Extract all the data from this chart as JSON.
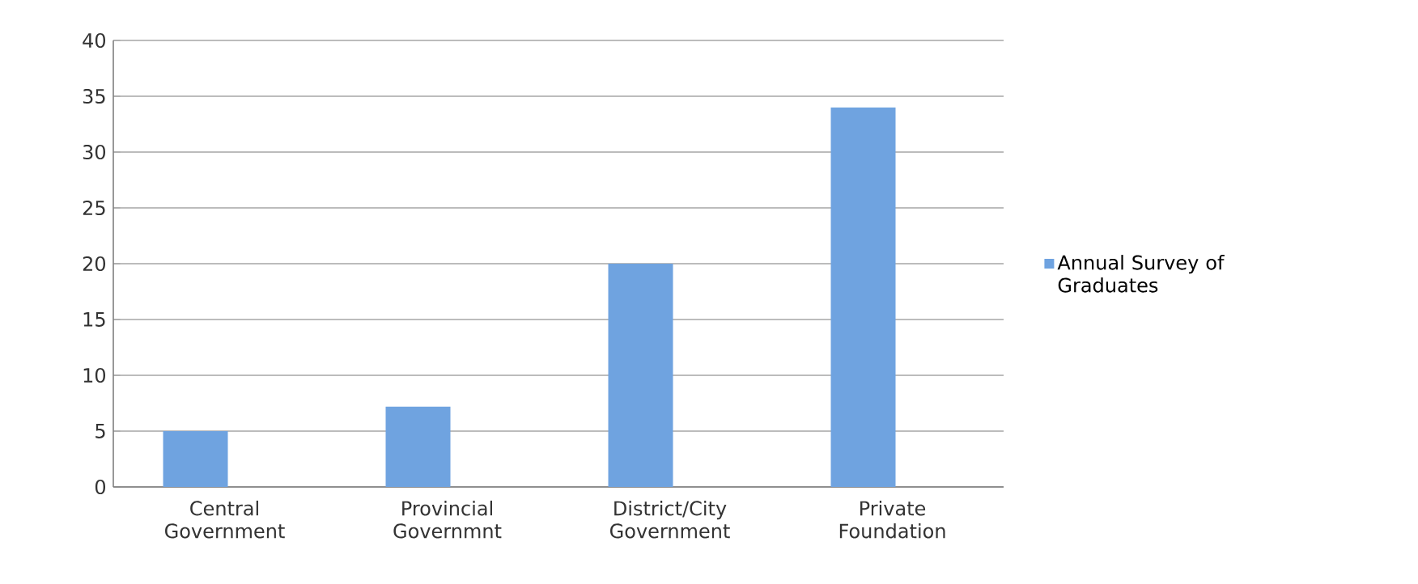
{
  "chart_data": {
    "type": "bar",
    "categories": [
      "Central Government",
      "Provincial Governmnt",
      "District/City Government",
      "Private Foundation"
    ],
    "series": [
      {
        "name": "Annual Survey of Graduates",
        "color": "#6fa3e0",
        "values": [
          5,
          7.2,
          20,
          34
        ]
      }
    ],
    "ylim": [
      0,
      40
    ],
    "yticks": [
      0,
      5,
      10,
      15,
      20,
      25,
      30,
      35,
      40
    ],
    "grid": "y",
    "legend": "right"
  }
}
